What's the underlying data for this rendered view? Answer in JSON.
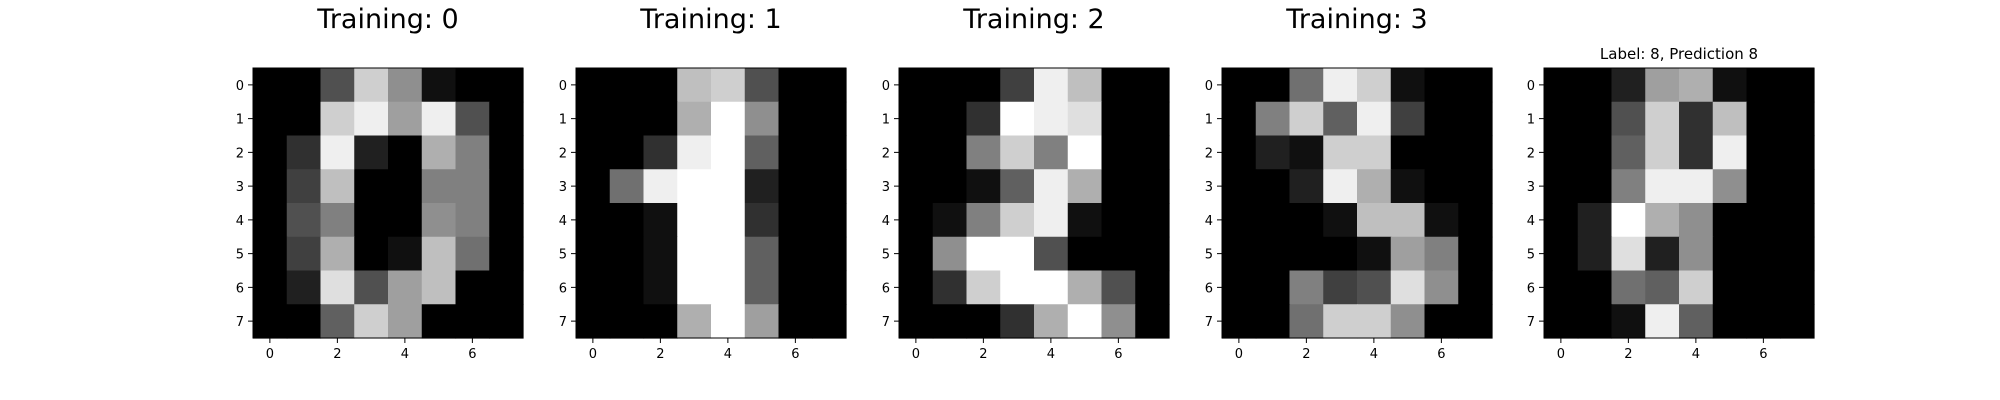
{
  "chart_data": [
    {
      "type": "heatmap",
      "title": "Training: 0",
      "colormap": "gray",
      "xticks": [
        0,
        2,
        4,
        6
      ],
      "yticks": [
        0,
        1,
        2,
        3,
        4,
        5,
        6,
        7
      ],
      "xlim": [
        -0.5,
        7.5
      ],
      "ylim": [
        7.5,
        -0.5
      ],
      "values": [
        [
          0,
          0,
          5,
          13,
          9,
          1,
          0,
          0
        ],
        [
          0,
          0,
          13,
          15,
          10,
          15,
          5,
          0
        ],
        [
          0,
          3,
          15,
          2,
          0,
          11,
          8,
          0
        ],
        [
          0,
          4,
          12,
          0,
          0,
          8,
          8,
          0
        ],
        [
          0,
          5,
          8,
          0,
          0,
          9,
          8,
          0
        ],
        [
          0,
          4,
          11,
          0,
          1,
          12,
          7,
          0
        ],
        [
          0,
          2,
          14,
          5,
          10,
          12,
          0,
          0
        ],
        [
          0,
          0,
          6,
          13,
          10,
          0,
          0,
          0
        ]
      ]
    },
    {
      "type": "heatmap",
      "title": "Training: 1",
      "colormap": "gray",
      "xticks": [
        0,
        2,
        4,
        6
      ],
      "yticks": [
        0,
        1,
        2,
        3,
        4,
        5,
        6,
        7
      ],
      "xlim": [
        -0.5,
        7.5
      ],
      "ylim": [
        7.5,
        -0.5
      ],
      "values": [
        [
          0,
          0,
          0,
          12,
          13,
          5,
          0,
          0
        ],
        [
          0,
          0,
          0,
          11,
          16,
          9,
          0,
          0
        ],
        [
          0,
          0,
          3,
          15,
          16,
          6,
          0,
          0
        ],
        [
          0,
          7,
          15,
          16,
          16,
          2,
          0,
          0
        ],
        [
          0,
          0,
          1,
          16,
          16,
          3,
          0,
          0
        ],
        [
          0,
          0,
          1,
          16,
          16,
          6,
          0,
          0
        ],
        [
          0,
          0,
          1,
          16,
          16,
          6,
          0,
          0
        ],
        [
          0,
          0,
          0,
          11,
          16,
          10,
          0,
          0
        ]
      ]
    },
    {
      "type": "heatmap",
      "title": "Training: 2",
      "colormap": "gray",
      "xticks": [
        0,
        2,
        4,
        6
      ],
      "yticks": [
        0,
        1,
        2,
        3,
        4,
        5,
        6,
        7
      ],
      "xlim": [
        -0.5,
        7.5
      ],
      "ylim": [
        7.5,
        -0.5
      ],
      "values": [
        [
          0,
          0,
          0,
          4,
          15,
          12,
          0,
          0
        ],
        [
          0,
          0,
          3,
          16,
          15,
          14,
          0,
          0
        ],
        [
          0,
          0,
          8,
          13,
          8,
          16,
          0,
          0
        ],
        [
          0,
          0,
          1,
          6,
          15,
          11,
          0,
          0
        ],
        [
          0,
          1,
          8,
          13,
          15,
          1,
          0,
          0
        ],
        [
          0,
          9,
          16,
          16,
          5,
          0,
          0,
          0
        ],
        [
          0,
          3,
          13,
          16,
          16,
          11,
          5,
          0
        ],
        [
          0,
          0,
          0,
          3,
          11,
          16,
          9,
          0
        ]
      ]
    },
    {
      "type": "heatmap",
      "title": "Training: 3",
      "colormap": "gray",
      "xticks": [
        0,
        2,
        4,
        6
      ],
      "yticks": [
        0,
        1,
        2,
        3,
        4,
        5,
        6,
        7
      ],
      "xlim": [
        -0.5,
        7.5
      ],
      "ylim": [
        7.5,
        -0.5
      ],
      "values": [
        [
          0,
          0,
          7,
          15,
          13,
          1,
          0,
          0
        ],
        [
          0,
          8,
          13,
          6,
          15,
          4,
          0,
          0
        ],
        [
          0,
          2,
          1,
          13,
          13,
          0,
          0,
          0
        ],
        [
          0,
          0,
          2,
          15,
          11,
          1,
          0,
          0
        ],
        [
          0,
          0,
          0,
          1,
          12,
          12,
          1,
          0
        ],
        [
          0,
          0,
          0,
          0,
          1,
          10,
          8,
          0
        ],
        [
          0,
          0,
          8,
          4,
          5,
          14,
          9,
          0
        ],
        [
          0,
          0,
          7,
          13,
          13,
          9,
          0,
          0
        ]
      ]
    },
    {
      "type": "heatmap",
      "title": "Label: 8, Prediction 8",
      "colormap": "gray",
      "xticks": [
        0,
        2,
        4,
        6
      ],
      "yticks": [
        0,
        1,
        2,
        3,
        4,
        5,
        6,
        7
      ],
      "xlim": [
        -0.5,
        7.5
      ],
      "ylim": [
        7.5,
        -0.5
      ],
      "values": [
        [
          0,
          0,
          2,
          10,
          11,
          1,
          0,
          0
        ],
        [
          0,
          0,
          5,
          13,
          3,
          12,
          0,
          0
        ],
        [
          0,
          0,
          6,
          13,
          3,
          15,
          0,
          0
        ],
        [
          0,
          0,
          8,
          15,
          15,
          9,
          0,
          0
        ],
        [
          0,
          2,
          16,
          11,
          9,
          0,
          0,
          0
        ],
        [
          0,
          2,
          14,
          2,
          9,
          0,
          0,
          0
        ],
        [
          0,
          0,
          7,
          6,
          13,
          0,
          0,
          0
        ],
        [
          0,
          0,
          1,
          15,
          6,
          0,
          0,
          0
        ]
      ]
    }
  ]
}
